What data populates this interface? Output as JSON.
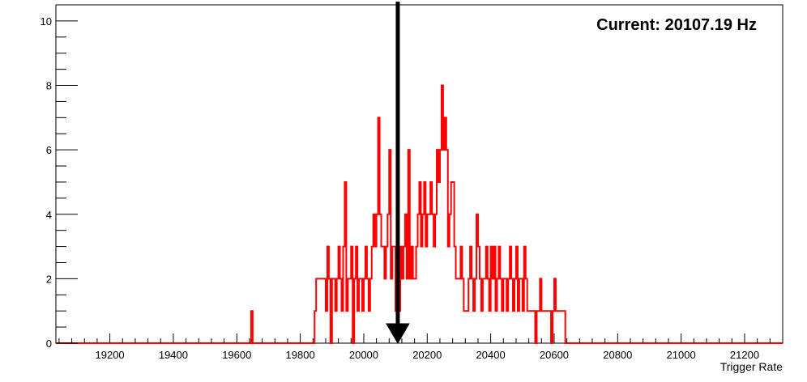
{
  "chart_data": {
    "type": "histogram",
    "xlabel": "Trigger Rate",
    "xlim": [
      19030,
      21320
    ],
    "ylim": [
      0,
      10.5
    ],
    "bin_width": 5,
    "x_ticks": [
      19200,
      19400,
      19600,
      19800,
      20000,
      20200,
      20400,
      20600,
      20800,
      21000,
      21200
    ],
    "y_ticks": [
      0,
      2,
      4,
      6,
      8,
      10
    ],
    "series": [
      {
        "color": "#ff0000",
        "bins": [
          [
            19645,
            1
          ],
          [
            19845,
            1
          ],
          [
            19850,
            2
          ],
          [
            19855,
            2
          ],
          [
            19860,
            2
          ],
          [
            19865,
            2
          ],
          [
            19870,
            2
          ],
          [
            19875,
            2
          ],
          [
            19880,
            1
          ],
          [
            19885,
            3
          ],
          [
            19890,
            2
          ],
          [
            19895,
            0
          ],
          [
            19900,
            2
          ],
          [
            19905,
            2
          ],
          [
            19910,
            1
          ],
          [
            19915,
            2
          ],
          [
            19920,
            3
          ],
          [
            19925,
            2
          ],
          [
            19930,
            1
          ],
          [
            19935,
            3
          ],
          [
            19940,
            5
          ],
          [
            19945,
            1
          ],
          [
            19950,
            2
          ],
          [
            19955,
            2
          ],
          [
            19960,
            3
          ],
          [
            19965,
            0
          ],
          [
            19970,
            2
          ],
          [
            19975,
            3
          ],
          [
            19980,
            1
          ],
          [
            19985,
            2
          ],
          [
            19990,
            2
          ],
          [
            19995,
            1
          ],
          [
            20000,
            2
          ],
          [
            20005,
            3
          ],
          [
            20010,
            2
          ],
          [
            20015,
            1
          ],
          [
            20020,
            2
          ],
          [
            20025,
            3
          ],
          [
            20030,
            4
          ],
          [
            20035,
            3
          ],
          [
            20040,
            4
          ],
          [
            20045,
            7
          ],
          [
            20050,
            4
          ],
          [
            20055,
            3
          ],
          [
            20060,
            3
          ],
          [
            20065,
            2
          ],
          [
            20070,
            3
          ],
          [
            20075,
            4
          ],
          [
            20080,
            6
          ],
          [
            20085,
            2
          ],
          [
            20090,
            3
          ],
          [
            20095,
            3
          ],
          [
            20100,
            1
          ],
          [
            20105,
            4
          ],
          [
            20110,
            1
          ],
          [
            20115,
            3
          ],
          [
            20120,
            2
          ],
          [
            20125,
            3
          ],
          [
            20130,
            4
          ],
          [
            20135,
            2
          ],
          [
            20140,
            6
          ],
          [
            20145,
            2
          ],
          [
            20150,
            3
          ],
          [
            20155,
            2
          ],
          [
            20160,
            2
          ],
          [
            20165,
            3
          ],
          [
            20170,
            4
          ],
          [
            20175,
            5
          ],
          [
            20180,
            3
          ],
          [
            20185,
            4
          ],
          [
            20190,
            5
          ],
          [
            20195,
            3
          ],
          [
            20200,
            4
          ],
          [
            20205,
            4
          ],
          [
            20210,
            5
          ],
          [
            20215,
            4
          ],
          [
            20220,
            3
          ],
          [
            20225,
            4
          ],
          [
            20230,
            6
          ],
          [
            20235,
            5
          ],
          [
            20240,
            6
          ],
          [
            20245,
            8
          ],
          [
            20250,
            6
          ],
          [
            20255,
            7
          ],
          [
            20260,
            6
          ],
          [
            20265,
            3
          ],
          [
            20270,
            4
          ],
          [
            20275,
            5
          ],
          [
            20280,
            5
          ],
          [
            20285,
            3
          ],
          [
            20290,
            2
          ],
          [
            20295,
            2
          ],
          [
            20300,
            2
          ],
          [
            20305,
            3
          ],
          [
            20310,
            2
          ],
          [
            20315,
            1
          ],
          [
            20320,
            1
          ],
          [
            20325,
            1
          ],
          [
            20330,
            2
          ],
          [
            20335,
            3
          ],
          [
            20340,
            2
          ],
          [
            20345,
            1
          ],
          [
            20350,
            2
          ],
          [
            20355,
            4
          ],
          [
            20360,
            3
          ],
          [
            20365,
            2
          ],
          [
            20370,
            1
          ],
          [
            20375,
            2
          ],
          [
            20380,
            2
          ],
          [
            20385,
            3
          ],
          [
            20390,
            2
          ],
          [
            20395,
            1
          ],
          [
            20400,
            3
          ],
          [
            20405,
            2
          ],
          [
            20410,
            3
          ],
          [
            20415,
            1
          ],
          [
            20420,
            2
          ],
          [
            20425,
            3
          ],
          [
            20430,
            2
          ],
          [
            20435,
            1
          ],
          [
            20440,
            2
          ],
          [
            20445,
            2
          ],
          [
            20450,
            1
          ],
          [
            20455,
            2
          ],
          [
            20460,
            3
          ],
          [
            20465,
            2
          ],
          [
            20470,
            1
          ],
          [
            20475,
            2
          ],
          [
            20480,
            3
          ],
          [
            20485,
            1
          ],
          [
            20490,
            2
          ],
          [
            20495,
            2
          ],
          [
            20500,
            1
          ],
          [
            20505,
            3
          ],
          [
            20510,
            2
          ],
          [
            20515,
            1
          ],
          [
            20520,
            1
          ],
          [
            20525,
            1
          ],
          [
            20530,
            1
          ],
          [
            20535,
            1
          ],
          [
            20540,
            0
          ],
          [
            20545,
            1
          ],
          [
            20550,
            1
          ],
          [
            20555,
            2
          ],
          [
            20560,
            1
          ],
          [
            20565,
            1
          ],
          [
            20570,
            1
          ],
          [
            20575,
            1
          ],
          [
            20580,
            1
          ],
          [
            20585,
            1
          ],
          [
            20590,
            0
          ],
          [
            20595,
            1
          ],
          [
            20600,
            2
          ],
          [
            20605,
            1
          ],
          [
            20610,
            1
          ],
          [
            20615,
            1
          ],
          [
            20620,
            1
          ],
          [
            20625,
            1
          ],
          [
            20630,
            1
          ]
        ]
      }
    ],
    "marker": {
      "x": 20107.19,
      "label": "Current: 20107.19 Hz"
    }
  }
}
